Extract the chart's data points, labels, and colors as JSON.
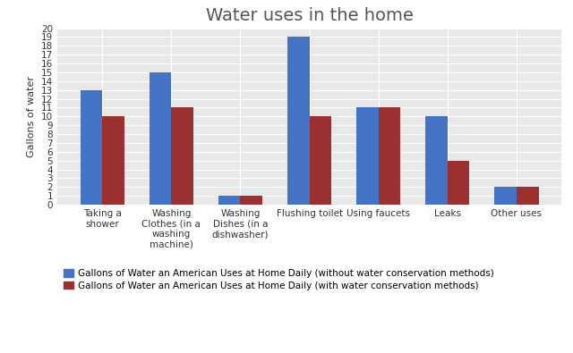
{
  "title": "Water uses in the home",
  "ylabel": "Gallons of water",
  "categories": [
    "Taking a\nshower",
    "Washing\nClothes (in a\nwashing\nmachine)",
    "Washing\nDishes (in a\ndishwasher)",
    "Flushing toilet",
    "Using faucets",
    "Leaks",
    "Other uses"
  ],
  "series": [
    {
      "label": "Gallons of Water an American Uses at Home Daily (without water conservation methods)",
      "values": [
        13,
        15,
        1,
        19,
        11,
        10,
        2
      ],
      "color": "#4472C4"
    },
    {
      "label": "Gallons of Water an American Uses at Home Daily (with water conservation methods)",
      "values": [
        10,
        11,
        1,
        10,
        11,
        5,
        2
      ],
      "color": "#9B3030"
    }
  ],
  "ylim": [
    0,
    20
  ],
  "yticks": [
    0,
    1,
    2,
    3,
    4,
    5,
    6,
    7,
    8,
    9,
    10,
    11,
    12,
    13,
    14,
    15,
    16,
    17,
    18,
    19,
    20
  ],
  "bar_width": 0.32,
  "background_color": "#FFFFFF",
  "plot_bg_color": "#E8E8E8",
  "grid_color": "#FFFFFF",
  "title_fontsize": 14,
  "axis_label_fontsize": 8,
  "tick_fontsize": 7.5,
  "legend_fontsize": 7.5
}
